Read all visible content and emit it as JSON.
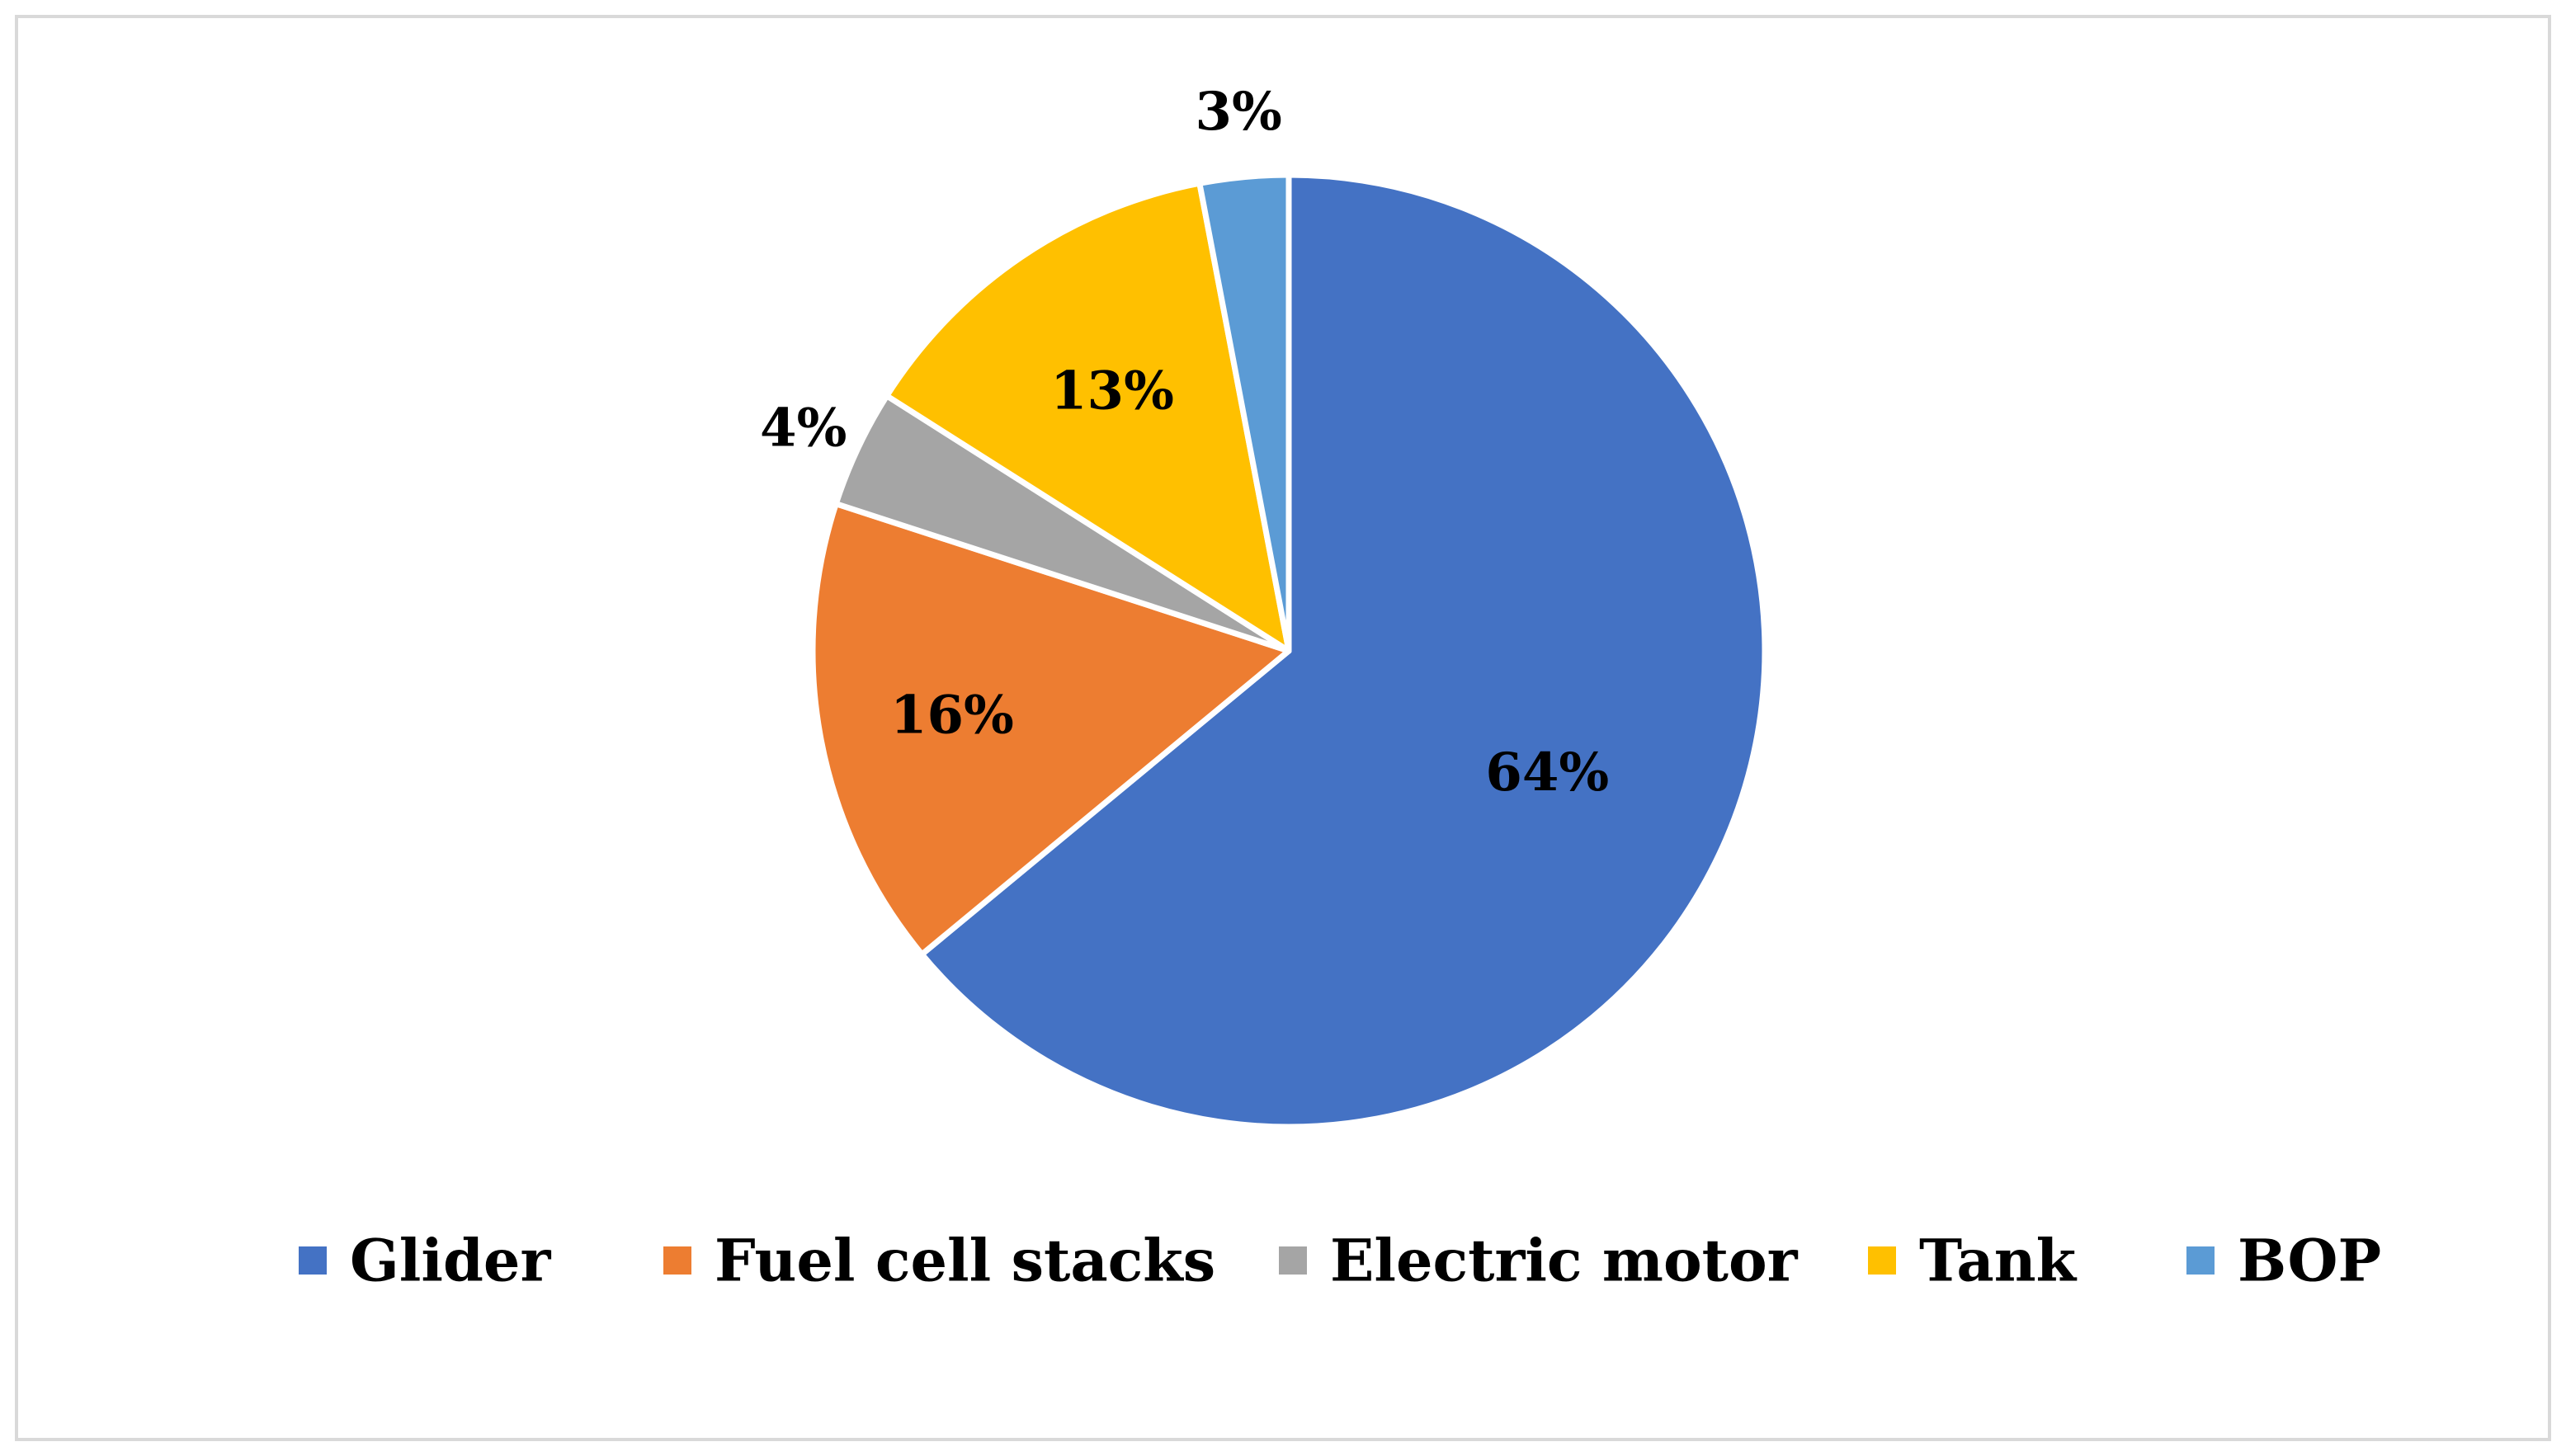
{
  "chart_data": {
    "type": "pie",
    "title": "",
    "categories": [
      "Glider",
      "Fuel cell stacks",
      "Electric motor",
      "Tank",
      "BOP"
    ],
    "values": [
      64,
      16,
      4,
      13,
      3
    ],
    "data_labels": [
      "64%",
      "16%",
      "4%",
      "13%",
      "3%"
    ],
    "colors": [
      "#4472C4",
      "#ED7D31",
      "#A5A5A5",
      "#FFC000",
      "#5B9BD5"
    ],
    "start_angle_deg": 0,
    "direction": "clockwise",
    "legend_position": "bottom",
    "slice_border_color": "#FFFFFF"
  }
}
